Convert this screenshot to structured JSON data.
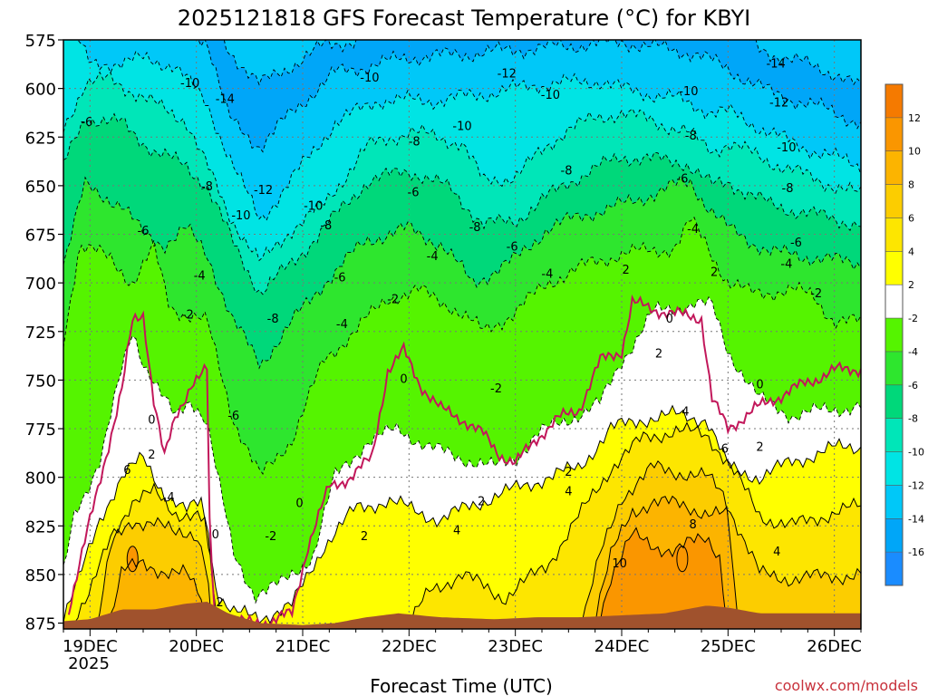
{
  "chart_data": {
    "type": "heatmap",
    "title": "2025121818 GFS Forecast Temperature (°C) for KBYI",
    "xlabel": "Forecast Time (UTC)",
    "ylabel": "",
    "credit": "coolwx.com/models",
    "x_tick_labels": [
      "19DEC",
      "20DEC",
      "21DEC",
      "22DEC",
      "23DEC",
      "24DEC",
      "25DEC",
      "26DEC"
    ],
    "x_year_label": "2025",
    "x_range_days": [
      18.75,
      26.25
    ],
    "y_tick_labels": [
      "575",
      "600",
      "625",
      "650",
      "675",
      "700",
      "725",
      "750",
      "775",
      "800",
      "825",
      "850",
      "875"
    ],
    "y_range_hpa": [
      575,
      878
    ],
    "colorbar": {
      "levels": [
        12,
        10,
        8,
        6,
        4,
        2,
        -2,
        -4,
        -6,
        -8,
        -10,
        -12,
        -14,
        -16
      ],
      "colors": [
        "#f57a00",
        "#fa9600",
        "#fcb400",
        "#fccd00",
        "#fde600",
        "#ffff00",
        "#ffffff",
        "#55f400",
        "#2ee62e",
        "#00d87a",
        "#00e6b8",
        "#00e4e4",
        "#00c8f8",
        "#00a6f8",
        "#1a8cff"
      ]
    },
    "series": [
      {
        "name": "0C isotherm",
        "x": [
          18.79,
          19.1,
          19.3,
          19.4,
          19.5,
          19.6,
          19.7,
          19.8,
          19.95,
          20.1,
          20.13,
          20.17,
          20.3,
          20.5,
          20.7,
          20.9,
          21.05,
          21.25,
          21.45,
          21.65,
          21.8,
          21.95,
          22.1,
          22.3,
          22.5,
          22.7,
          22.85,
          23.0,
          23.2,
          23.4,
          23.6,
          23.8,
          24.0,
          24.1,
          24.25,
          24.5,
          24.75,
          24.85,
          25.0,
          25.25,
          25.6,
          26.0,
          26.25
        ],
        "pressure": [
          870,
          800,
          755,
          720,
          716,
          760,
          790,
          770,
          752,
          745,
          838,
          870,
          874,
          875,
          874,
          870,
          835,
          805,
          800,
          790,
          745,
          735,
          752,
          765,
          770,
          778,
          788,
          793,
          780,
          770,
          765,
          740,
          735,
          710,
          713,
          716,
          718,
          760,
          775,
          765,
          755,
          745,
          744
        ]
      }
    ],
    "contour_labels": [
      {
        "text": "0",
        "x": 19.58,
        "p": 770
      },
      {
        "text": "2",
        "x": 19.58,
        "p": 788
      },
      {
        "text": "4",
        "x": 19.76,
        "p": 810
      },
      {
        "text": "6",
        "x": 19.35,
        "p": 796
      },
      {
        "text": "0",
        "x": 20.18,
        "p": 829
      },
      {
        "text": "2",
        "x": 20.22,
        "p": 864
      },
      {
        "text": "-2",
        "x": 20.7,
        "p": 830
      },
      {
        "text": "0",
        "x": 20.97,
        "p": 813
      },
      {
        "text": "2",
        "x": 21.58,
        "p": 830
      },
      {
        "text": "4",
        "x": 22.45,
        "p": 827
      },
      {
        "text": "2",
        "x": 22.68,
        "p": 812
      },
      {
        "text": "2",
        "x": 23.5,
        "p": 797
      },
      {
        "text": "4",
        "x": 23.5,
        "p": 807
      },
      {
        "text": "10",
        "x": 23.98,
        "p": 844
      },
      {
        "text": "8",
        "x": 24.67,
        "p": 824
      },
      {
        "text": "6",
        "x": 24.97,
        "p": 785
      },
      {
        "text": "4",
        "x": 24.6,
        "p": 766
      },
      {
        "text": "2",
        "x": 24.35,
        "p": 736
      },
      {
        "text": "0",
        "x": 24.45,
        "p": 718
      },
      {
        "text": "2",
        "x": 24.04,
        "p": 693
      },
      {
        "text": "-4",
        "x": 24.67,
        "p": 672
      },
      {
        "text": "2",
        "x": 24.87,
        "p": 694
      },
      {
        "text": "0",
        "x": 25.3,
        "p": 752
      },
      {
        "text": "2",
        "x": 25.3,
        "p": 784
      },
      {
        "text": "4",
        "x": 25.46,
        "p": 838
      },
      {
        "text": "-2",
        "x": 19.92,
        "p": 716
      },
      {
        "text": "-4",
        "x": 20.03,
        "p": 696
      },
      {
        "text": "-6",
        "x": 19.5,
        "p": 673
      },
      {
        "text": "-6",
        "x": 20.35,
        "p": 768
      },
      {
        "text": "-8",
        "x": 20.72,
        "p": 718
      },
      {
        "text": "-8",
        "x": 20.1,
        "p": 650
      },
      {
        "text": "-10",
        "x": 19.94,
        "p": 597
      },
      {
        "text": "-14",
        "x": 20.27,
        "p": 605
      },
      {
        "text": "-12",
        "x": 20.63,
        "p": 652
      },
      {
        "text": "-10",
        "x": 20.42,
        "p": 665
      },
      {
        "text": "-10",
        "x": 21.1,
        "p": 660
      },
      {
        "text": "-8",
        "x": 21.22,
        "p": 670
      },
      {
        "text": "-6",
        "x": 21.35,
        "p": 697
      },
      {
        "text": "-4",
        "x": 21.37,
        "p": 721
      },
      {
        "text": "-2",
        "x": 21.85,
        "p": 708
      },
      {
        "text": "0",
        "x": 21.95,
        "p": 749
      },
      {
        "text": "-4",
        "x": 22.22,
        "p": 686
      },
      {
        "text": "-6",
        "x": 22.04,
        "p": 653
      },
      {
        "text": "-8",
        "x": 22.05,
        "p": 627
      },
      {
        "text": "-10",
        "x": 21.63,
        "p": 594
      },
      {
        "text": "-10",
        "x": 22.5,
        "p": 619
      },
      {
        "text": "-8",
        "x": 22.62,
        "p": 671
      },
      {
        "text": "-6",
        "x": 22.97,
        "p": 681
      },
      {
        "text": "-4",
        "x": 23.3,
        "p": 695
      },
      {
        "text": "-2",
        "x": 22.82,
        "p": 754
      },
      {
        "text": "-12",
        "x": 22.92,
        "p": 592
      },
      {
        "text": "-10",
        "x": 23.33,
        "p": 603
      },
      {
        "text": "-8",
        "x": 23.48,
        "p": 642
      },
      {
        "text": "-10",
        "x": 24.63,
        "p": 601
      },
      {
        "text": "-8",
        "x": 24.65,
        "p": 624
      },
      {
        "text": "-6",
        "x": 24.57,
        "p": 646
      },
      {
        "text": "-14",
        "x": 25.45,
        "p": 587
      },
      {
        "text": "-12",
        "x": 25.48,
        "p": 607
      },
      {
        "text": "-10",
        "x": 25.55,
        "p": 630
      },
      {
        "text": "-8",
        "x": 25.56,
        "p": 651
      },
      {
        "text": "-6",
        "x": 25.64,
        "p": 679
      },
      {
        "text": "-4",
        "x": 25.55,
        "p": 690
      },
      {
        "text": "-2",
        "x": 25.83,
        "p": 705
      },
      {
        "text": "-6",
        "x": 18.97,
        "p": 617
      }
    ]
  }
}
